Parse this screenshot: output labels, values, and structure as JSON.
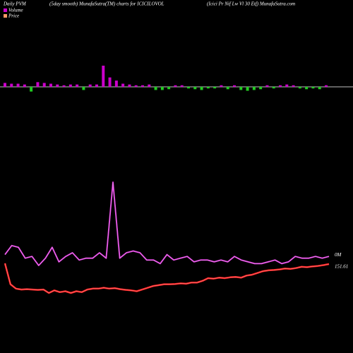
{
  "chart_data": [
    {
      "type": "bar",
      "title": "Daily PVM",
      "subtitle": "(5day smooth) MunafaSutra(TM) charts for ICICILOVOL",
      "source": "(Icici Pr Nif Lw Vl 30 Etf) MunafaSutra.com",
      "pos_color": "#cc00cc",
      "neg_color": "#22cc22",
      "values": [
        5,
        4,
        4,
        3,
        -6,
        6,
        5,
        4,
        3,
        2,
        3,
        3,
        -4,
        3,
        3,
        27,
        12,
        8,
        4,
        3,
        2,
        2,
        3,
        -4,
        -4,
        -3,
        2,
        2,
        -2,
        -3,
        -4,
        -2,
        -2,
        2,
        -3,
        2,
        -4,
        -5,
        -4,
        -3,
        2,
        -2,
        2,
        3,
        2,
        -2,
        -3,
        -2,
        -3,
        2
      ]
    },
    {
      "type": "line",
      "name": "Volume",
      "color": "#cc33cc",
      "end_label": "0M",
      "values": [
        10,
        15,
        14,
        8,
        9,
        4,
        8,
        14,
        6,
        9,
        11,
        7,
        8,
        8,
        11,
        8,
        50,
        8,
        11,
        12,
        11,
        7,
        7,
        5,
        10,
        7,
        8,
        9,
        6,
        7,
        7,
        6,
        7,
        6,
        9,
        7,
        6,
        5,
        5,
        6,
        7,
        5,
        6,
        9,
        8,
        8,
        9,
        8,
        9
      ]
    },
    {
      "type": "line",
      "name": "Price",
      "color": "#ff2222",
      "values": [
        152,
        140,
        137.5,
        137,
        137.2,
        137,
        136.8,
        137,
        135,
        136.5,
        135.5,
        136,
        135,
        136,
        135.5,
        137,
        137.5,
        137.5,
        138,
        137.5,
        137.8,
        137.2,
        136.8,
        136.5,
        136,
        137,
        138,
        139,
        139.5,
        140,
        140,
        140.2,
        140.5,
        140.3,
        141,
        141,
        142,
        143.5,
        143.2,
        143.8,
        143.5,
        144,
        144.2,
        143.8,
        145,
        145.5,
        146.5,
        147.5,
        148,
        148.2,
        148.5,
        149,
        148.8,
        149.3,
        150,
        149.8,
        150.2,
        150.5,
        151,
        151.61
      ]
    }
  ]
}
